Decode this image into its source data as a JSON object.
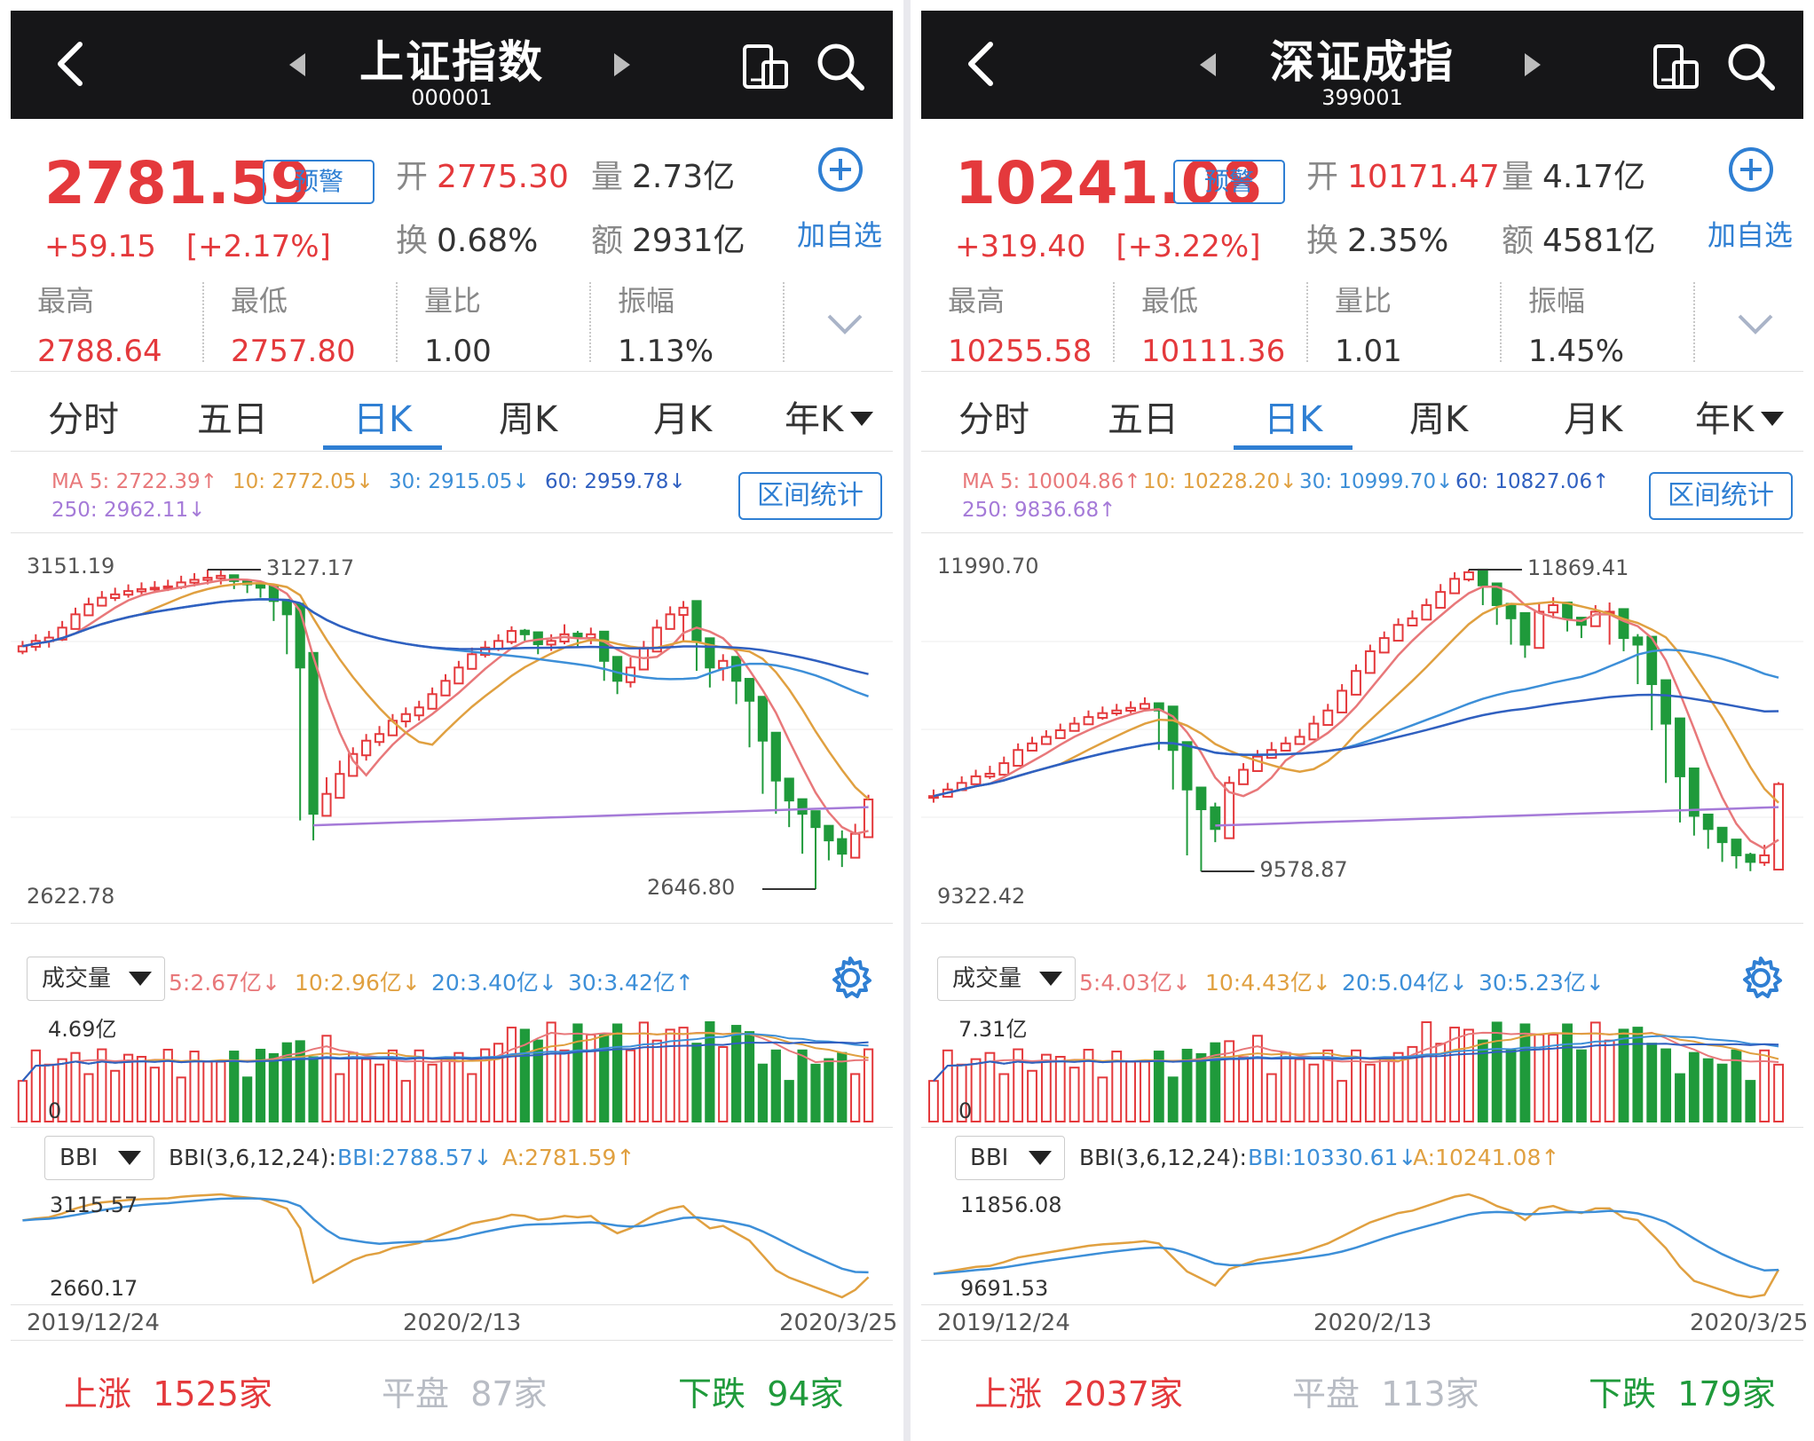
{
  "colors": {
    "up": "#e4393c",
    "down": "#1f9a3b",
    "accent": "#2f7fd3",
    "header_bg": "#161618",
    "ma5": "#e8787a",
    "ma10": "#e0a040",
    "ma30": "#3d8fd8",
    "ma60": "#3060c0",
    "ma250": "#a57ad8"
  },
  "panels": [
    {
      "title": "上证指数",
      "code": "000001",
      "price": "2781.59",
      "alert_label": "预警",
      "change": "+59.15",
      "change_pct": "[+2.17%]",
      "open_label": "开",
      "open": "2775.30",
      "volume_label": "量",
      "volume": "2.73亿",
      "turnover_label": "换",
      "turnover": "0.68%",
      "amount_label": "额",
      "amount": "2931亿",
      "add_watch_label": "加自选",
      "high_label": "最高",
      "high": "2788.64",
      "low_label": "最低",
      "low": "2757.80",
      "vol_ratio_label": "量比",
      "vol_ratio": "1.00",
      "amplitude_label": "振幅",
      "amplitude": "1.13%",
      "tabs": [
        "分时",
        "五日",
        "日K",
        "周K",
        "月K",
        "年K"
      ],
      "active_tab": "日K",
      "ma": {
        "ma5": "MA 5: 2722.39↑",
        "ma10": "10: 2772.05↓",
        "ma30": "30: 2915.05↓",
        "ma60": "60: 2959.78↓",
        "ma250": "250: 2962.11↓"
      },
      "range_stat_label": "区间统计",
      "kline": {
        "axis_top": "3151.19",
        "axis_bottom": "2622.78",
        "max_label": "3127.17",
        "min_label": "2646.80"
      },
      "volume_panel": {
        "dropdown": "成交量",
        "ma5": "5:2.67亿↓",
        "ma10": "10:2.96亿↓",
        "ma20": "20:3.40亿↓",
        "ma30": "30:3.42亿↑",
        "axis_top": "4.69亿",
        "axis_zero": "0"
      },
      "bbi_panel": {
        "dropdown": "BBI",
        "params": "BBI(3,6,12,24):",
        "bbi": "BBI:2788.57↓",
        "a": "A:2781.59↑",
        "axis_top": "3115.57",
        "axis_bottom": "2660.17"
      },
      "dates": [
        "2019/12/24",
        "2020/2/13",
        "2020/3/25"
      ],
      "footer": {
        "up": "上涨",
        "up_count": "1525家",
        "flat": "平盘",
        "flat_count": "87家",
        "down": "下跌",
        "down_count": "94家"
      }
    },
    {
      "title": "深证成指",
      "code": "399001",
      "price": "10241.08",
      "alert_label": "预警",
      "change": "+319.40",
      "change_pct": "[+3.22%]",
      "open_label": "开",
      "open": "10171.47",
      "volume_label": "量",
      "volume": "4.17亿",
      "turnover_label": "换",
      "turnover": "2.35%",
      "amount_label": "额",
      "amount": "4581亿",
      "add_watch_label": "加自选",
      "high_label": "最高",
      "high": "10255.58",
      "low_label": "最低",
      "low": "10111.36",
      "vol_ratio_label": "量比",
      "vol_ratio": "1.01",
      "amplitude_label": "振幅",
      "amplitude": "1.45%",
      "tabs": [
        "分时",
        "五日",
        "日K",
        "周K",
        "月K",
        "年K"
      ],
      "active_tab": "日K",
      "ma": {
        "ma5": "MA 5: 10004.86↑",
        "ma10": "10: 10228.20↓",
        "ma30": "30: 10999.70↓",
        "ma60": "60: 10827.06↑",
        "ma250": "250: 9836.68↑"
      },
      "range_stat_label": "区间统计",
      "kline": {
        "axis_top": "11990.70",
        "axis_bottom": "9322.42",
        "max_label": "11869.41",
        "min_label": "9578.87"
      },
      "volume_panel": {
        "dropdown": "成交量",
        "ma5": "5:4.03亿↓",
        "ma10": "10:4.43亿↓",
        "ma20": "20:5.04亿↓",
        "ma30": "30:5.23亿↓",
        "axis_top": "7.31亿",
        "axis_zero": "0"
      },
      "bbi_panel": {
        "dropdown": "BBI",
        "params": "BBI(3,6,12,24):",
        "bbi": "BBI:10330.61↓",
        "a": "A:10241.08↑",
        "axis_top": "11856.08",
        "axis_bottom": "9691.53"
      },
      "dates": [
        "2019/12/24",
        "2020/2/13",
        "2020/3/25"
      ],
      "footer": {
        "up": "上涨",
        "up_count": "2037家",
        "flat": "平盘",
        "flat_count": "113家",
        "down": "下跌",
        "down_count": "179家"
      }
    }
  ],
  "chart_data": [
    {
      "type": "candlestick",
      "index": "上证指数",
      "x_start": "2019/12/24",
      "x_end": "2020/3/25",
      "ylim": [
        2622.78,
        3151.19
      ],
      "close": [
        3012,
        3020,
        3025,
        3040,
        3060,
        3075,
        3085,
        3090,
        3095,
        3098,
        3100,
        3102,
        3108,
        3112,
        3115,
        3118,
        3110,
        3105,
        3100,
        3080,
        3060,
        2980,
        2760,
        2790,
        2820,
        2850,
        2870,
        2880,
        2900,
        2910,
        2920,
        2940,
        2960,
        2980,
        3000,
        3010,
        3020,
        3035,
        3030,
        3015,
        3020,
        3030,
        3025,
        3030,
        2990,
        2960,
        2980,
        3010,
        3040,
        3060,
        3070,
        3020,
        2980,
        2990,
        2960,
        2930,
        2870,
        2810,
        2780,
        2760,
        2740,
        2720,
        2700,
        2730,
        2781.59
      ],
      "high": [
        3020,
        3030,
        3035,
        3050,
        3070,
        3085,
        3095,
        3100,
        3105,
        3108,
        3110,
        3112,
        3118,
        3122,
        3127.17,
        3126,
        3118,
        3112,
        3108,
        3090,
        3070,
        2990,
        2800,
        2815,
        2840,
        2860,
        2880,
        2892,
        2910,
        2920,
        2930,
        2950,
        2970,
        2990,
        3010,
        3020,
        3030,
        3042,
        3038,
        3025,
        3030,
        3045,
        3035,
        3040,
        3000,
        2975,
        2995,
        3020,
        3052,
        3072,
        3080,
        3035,
        2990,
        3000,
        2970,
        2945,
        2880,
        2820,
        2790,
        2770,
        2750,
        2730,
        2735,
        2745,
        2788.64
      ],
      "low": [
        3000,
        3005,
        3010,
        3020,
        3045,
        3060,
        3072,
        3080,
        3085,
        3090,
        3092,
        3095,
        3098,
        3102,
        3105,
        3105,
        3098,
        3092,
        3085,
        3050,
        3000,
        2750,
        2720,
        2760,
        2790,
        2820,
        2840,
        2862,
        2880,
        2890,
        2900,
        2920,
        2940,
        2960,
        2980,
        2995,
        3005,
        3015,
        3018,
        3000,
        3005,
        3015,
        3012,
        3015,
        2960,
        2940,
        2950,
        2985,
        3010,
        3040,
        3020,
        2975,
        2950,
        2960,
        2925,
        2860,
        2790,
        2760,
        2740,
        2700,
        2646.8,
        2690,
        2680,
        2700,
        2757.8
      ]
    },
    {
      "type": "candlestick",
      "index": "深证成指",
      "x_start": "2019/12/24",
      "x_end": "2020/3/25",
      "ylim": [
        9322.42,
        11990.7
      ],
      "close": [
        10150,
        10200,
        10250,
        10300,
        10320,
        10400,
        10500,
        10550,
        10600,
        10650,
        10700,
        10750,
        10780,
        10800,
        10820,
        10850,
        10800,
        10500,
        10200,
        10050,
        9900,
        10250,
        10350,
        10450,
        10500,
        10550,
        10600,
        10700,
        10800,
        10950,
        11100,
        11250,
        11350,
        11450,
        11500,
        11600,
        11700,
        11800,
        11850,
        11750,
        11600,
        11500,
        11300,
        11550,
        11600,
        11500,
        11450,
        11550,
        11550,
        11350,
        11300,
        11000,
        10700,
        10300,
        10000,
        9900,
        9800,
        9700,
        9650,
        9700,
        10241.08
      ],
      "high": [
        10200,
        10250,
        10300,
        10350,
        10380,
        10450,
        10550,
        10600,
        10650,
        10700,
        10750,
        10800,
        10830,
        10850,
        10870,
        10900,
        10860,
        10550,
        10280,
        10150,
        10100,
        10300,
        10400,
        10500,
        10560,
        10600,
        10660,
        10760,
        10850,
        11000,
        11150,
        11300,
        11400,
        11500,
        11560,
        11650,
        11760,
        11850,
        11869.41,
        11800,
        11660,
        11560,
        11420,
        11620,
        11660,
        11560,
        11500,
        11600,
        11620,
        11420,
        11380,
        11080,
        10750,
        10400,
        10080,
        9980,
        9860,
        9780,
        9720,
        9780,
        10255.58
      ],
      "low": [
        10100,
        10150,
        10200,
        10250,
        10280,
        10350,
        10450,
        10500,
        10550,
        10600,
        10650,
        10700,
        10730,
        10760,
        10780,
        10800,
        10500,
        10200,
        9700,
        9578.87,
        9800,
        10150,
        10250,
        10380,
        10450,
        10500,
        10540,
        10650,
        10750,
        10900,
        11050,
        11200,
        11300,
        11400,
        11450,
        11550,
        11650,
        11750,
        11780,
        11600,
        11450,
        11300,
        11200,
        11450,
        11500,
        11400,
        11350,
        11480,
        11300,
        11250,
        11000,
        10650,
        10250,
        9950,
        9850,
        9750,
        9650,
        9600,
        9580,
        9620,
        10111.36
      ]
    }
  ]
}
